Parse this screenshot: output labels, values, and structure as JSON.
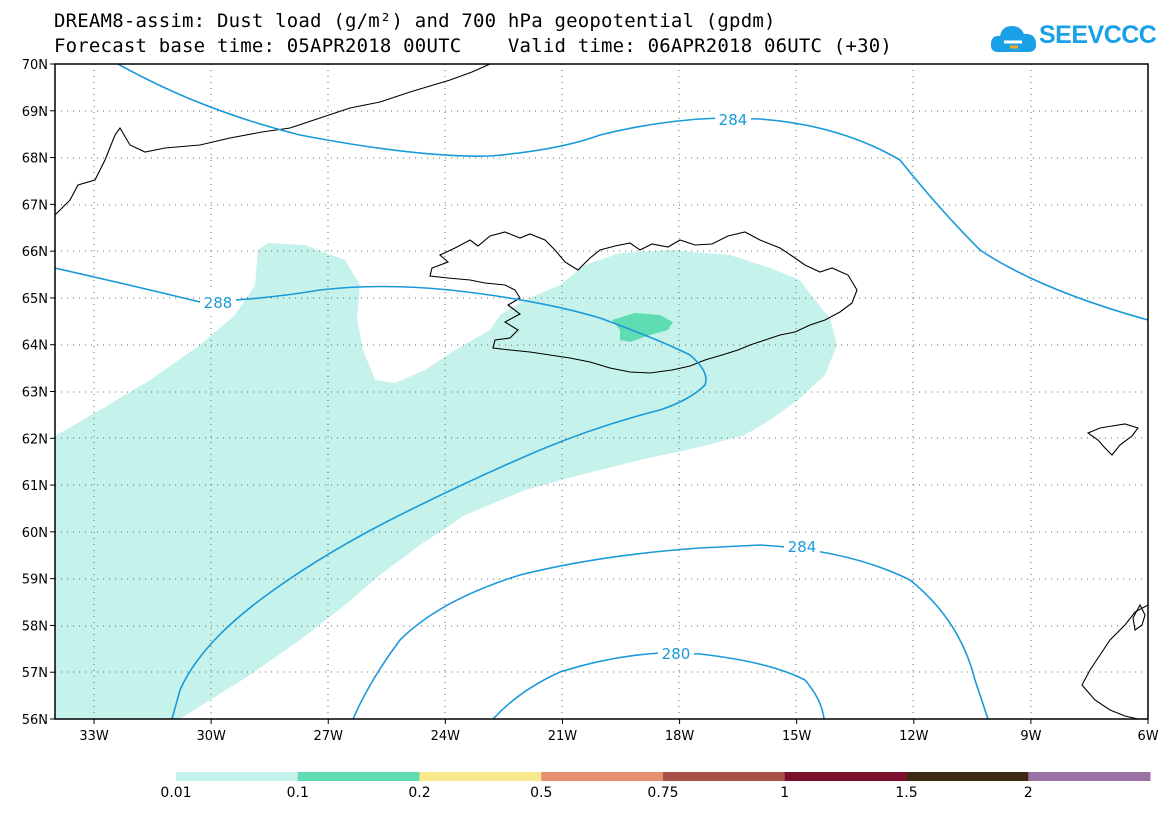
{
  "title": {
    "line1": "DREAM8-assim: Dust load (g/m²) and 700 hPa geopotential (gpdm)",
    "line2": "Forecast base time: 05APR2018 00UTC    Valid time: 06APR2018 06UTC (+30)"
  },
  "logo": {
    "text": "SEEVCCC",
    "icon": "cloud-icon",
    "color": "#1aa0e6"
  },
  "map": {
    "lon_range": [
      -34.0,
      -6.0
    ],
    "lat_range": [
      56.0,
      70.0
    ],
    "lon_ticks": [
      "33W",
      "30W",
      "27W",
      "24W",
      "21W",
      "18W",
      "15W",
      "12W",
      "9W",
      "6W"
    ],
    "lat_ticks": [
      "70N",
      "69N",
      "68N",
      "67N",
      "66N",
      "65N",
      "64N",
      "63N",
      "62N",
      "61N",
      "60N",
      "59N",
      "58N",
      "57N",
      "56N"
    ],
    "grid": "dotted",
    "contour_color": "#1a9ad9",
    "contour_labels": [
      "284",
      "288",
      "284",
      "280"
    ]
  },
  "colorbar": {
    "labels": [
      "0.01",
      "0.1",
      "0.2",
      "0.5",
      "0.75",
      "1",
      "1.5",
      "2"
    ],
    "colors": [
      "#c6f2ec",
      "#5fdcb2",
      "#f7e98c",
      "#e89070",
      "#a8504a",
      "#7d0f2e",
      "#3d2a14",
      "#9a72a4"
    ]
  }
}
